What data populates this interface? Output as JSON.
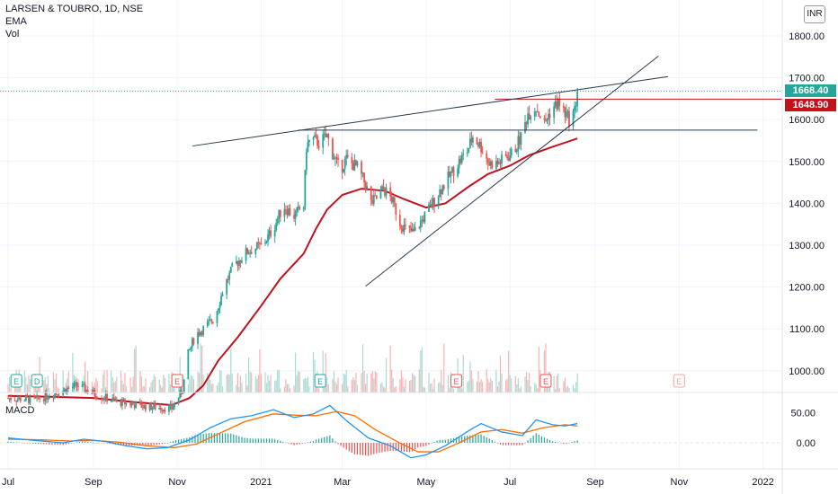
{
  "header": {
    "symbol": "LARSEN & TOUBRO, 1D, NSE",
    "indicator": "EMA",
    "volume": "Vol",
    "currency": "INR"
  },
  "price_axis": {
    "labels": [
      "1800.00",
      "1700.00",
      "1600.00",
      "1500.00",
      "1400.00",
      "1300.00",
      "1200.00",
      "1100.00",
      "1000.00"
    ],
    "current": "1668.40",
    "level": "1648.90"
  },
  "macd_panel": {
    "title": "MACD",
    "labels": [
      "50.00",
      "0.00"
    ]
  },
  "time_axis": {
    "labels": [
      "Jul",
      "Sep",
      "Nov",
      "2021",
      "Mar",
      "May",
      "Jul",
      "Sep",
      "Nov",
      "2022"
    ]
  },
  "colors": {
    "up": "#26a69a",
    "down": "#ef5350",
    "ema": "#c2121c",
    "trendline": "#2a3b4c",
    "current_badge": "#26a69a",
    "level_badge": "#c2121c",
    "macd_line": "#2196f3",
    "signal_line": "#ff6d00"
  },
  "event_markers": [
    "E",
    "D",
    "E",
    "E",
    "E",
    "E",
    "E"
  ],
  "chart_data": {
    "type": "candlestick",
    "title": "LARSEN & TOUBRO, 1D, NSE",
    "y_range": [
      940,
      1840
    ],
    "macd_range": [
      -40,
      70
    ],
    "x_range": [
      "2020-07-01",
      "2022-01-15"
    ],
    "tick_dates": [
      "2020-07-01",
      "2020-09-01",
      "2020-11-01",
      "2021-01-01",
      "2021-03-01",
      "2021-05-01",
      "2021-07-01",
      "2021-09-01",
      "2021-11-01",
      "2022-01-01"
    ],
    "price_ticks": [
      1800,
      1700,
      1600,
      1500,
      1400,
      1300,
      1200,
      1100,
      1000
    ],
    "macd_ticks": [
      50,
      0
    ],
    "last_close": 1668.4,
    "horizontal_levels": [
      1648.9,
      1575
    ],
    "trendlines": [
      {
        "from": [
          "2020-11-12",
          1537
        ],
        "to": [
          "2021-10-24",
          1703
        ]
      },
      {
        "from": [
          "2021-01-28",
          1575
        ],
        "to": [
          "2021-12-28",
          1575
        ]
      },
      {
        "from": [
          "2021-03-18",
          1202
        ],
        "to": [
          "2021-10-17",
          1752
        ]
      }
    ],
    "closes": [
      [
        "2020-07-01",
        935
      ],
      [
        "2020-07-20",
        930
      ],
      [
        "2020-08-08",
        950
      ],
      [
        "2020-08-20",
        965
      ],
      [
        "2020-09-05",
        940
      ],
      [
        "2020-09-20",
        925
      ],
      [
        "2020-10-08",
        915
      ],
      [
        "2020-10-28",
        910
      ],
      [
        "2020-11-05",
        955
      ],
      [
        "2020-11-09",
        1040
      ],
      [
        "2020-11-14",
        1085
      ],
      [
        "2020-11-20",
        1100
      ],
      [
        "2020-11-28",
        1125
      ],
      [
        "2020-12-05",
        1200
      ],
      [
        "2020-12-12",
        1250
      ],
      [
        "2020-12-22",
        1285
      ],
      [
        "2021-01-02",
        1300
      ],
      [
        "2021-01-10",
        1340
      ],
      [
        "2021-01-17",
        1395
      ],
      [
        "2021-01-25",
        1370
      ],
      [
        "2021-02-01",
        1395
      ],
      [
        "2021-02-03",
        1535
      ],
      [
        "2021-02-06",
        1555
      ],
      [
        "2021-02-12",
        1545
      ],
      [
        "2021-02-18",
        1560
      ],
      [
        "2021-02-22",
        1520
      ],
      [
        "2021-02-27",
        1480
      ],
      [
        "2021-03-04",
        1505
      ],
      [
        "2021-03-12",
        1485
      ],
      [
        "2021-03-18",
        1445
      ],
      [
        "2021-03-22",
        1400
      ],
      [
        "2021-03-27",
        1415
      ],
      [
        "2021-03-31",
        1435
      ],
      [
        "2021-04-06",
        1410
      ],
      [
        "2021-04-12",
        1355
      ],
      [
        "2021-04-17",
        1335
      ],
      [
        "2021-04-22",
        1330
      ],
      [
        "2021-04-27",
        1355
      ],
      [
        "2021-05-04",
        1390
      ],
      [
        "2021-05-10",
        1425
      ],
      [
        "2021-05-17",
        1460
      ],
      [
        "2021-05-24",
        1495
      ],
      [
        "2021-05-31",
        1525
      ],
      [
        "2021-06-04",
        1560
      ],
      [
        "2021-06-10",
        1535
      ],
      [
        "2021-06-16",
        1495
      ],
      [
        "2021-06-22",
        1495
      ],
      [
        "2021-06-28",
        1510
      ],
      [
        "2021-07-03",
        1520
      ],
      [
        "2021-07-06",
        1540
      ],
      [
        "2021-07-10",
        1565
      ],
      [
        "2021-07-14",
        1615
      ],
      [
        "2021-07-20",
        1630
      ],
      [
        "2021-07-26",
        1590
      ],
      [
        "2021-07-31",
        1625
      ],
      [
        "2021-08-05",
        1640
      ],
      [
        "2021-08-10",
        1615
      ],
      [
        "2021-08-13",
        1600
      ],
      [
        "2021-08-17",
        1620
      ],
      [
        "2021-08-19",
        1668.4
      ]
    ],
    "ema": [
      [
        "2020-07-01",
        940
      ],
      [
        "2020-08-01",
        938
      ],
      [
        "2020-09-01",
        935
      ],
      [
        "2020-10-01",
        925
      ],
      [
        "2020-10-28",
        918
      ],
      [
        "2020-11-10",
        935
      ],
      [
        "2020-11-20",
        965
      ],
      [
        "2020-12-01",
        1025
      ],
      [
        "2020-12-15",
        1080
      ],
      [
        "2021-01-01",
        1155
      ],
      [
        "2021-01-15",
        1220
      ],
      [
        "2021-02-01",
        1280
      ],
      [
        "2021-02-10",
        1340
      ],
      [
        "2021-02-18",
        1385
      ],
      [
        "2021-03-01",
        1420
      ],
      [
        "2021-03-15",
        1435
      ],
      [
        "2021-04-01",
        1430
      ],
      [
        "2021-04-15",
        1410
      ],
      [
        "2021-05-01",
        1390
      ],
      [
        "2021-05-15",
        1400
      ],
      [
        "2021-06-01",
        1440
      ],
      [
        "2021-06-15",
        1470
      ],
      [
        "2021-07-01",
        1490
      ],
      [
        "2021-07-15",
        1515
      ],
      [
        "2021-08-01",
        1535
      ],
      [
        "2021-08-19",
        1555
      ]
    ],
    "macd": [
      [
        "2020-07-01",
        8
      ],
      [
        "2020-07-20",
        4
      ],
      [
        "2020-08-10",
        0
      ],
      [
        "2020-08-25",
        6
      ],
      [
        "2020-09-10",
        2
      ],
      [
        "2020-09-25",
        -5
      ],
      [
        "2020-10-10",
        -10
      ],
      [
        "2020-10-25",
        -8
      ],
      [
        "2020-11-10",
        5
      ],
      [
        "2020-11-25",
        25
      ],
      [
        "2020-12-10",
        40
      ],
      [
        "2020-12-25",
        45
      ],
      [
        "2021-01-10",
        55
      ],
      [
        "2021-01-25",
        42
      ],
      [
        "2021-02-08",
        48
      ],
      [
        "2021-02-20",
        62
      ],
      [
        "2021-03-05",
        35
      ],
      [
        "2021-03-20",
        8
      ],
      [
        "2021-04-05",
        -5
      ],
      [
        "2021-04-20",
        -25
      ],
      [
        "2021-05-01",
        -20
      ],
      [
        "2021-05-15",
        -5
      ],
      [
        "2021-06-01",
        20
      ],
      [
        "2021-06-10",
        32
      ],
      [
        "2021-06-25",
        18
      ],
      [
        "2021-07-10",
        12
      ],
      [
        "2021-07-20",
        38
      ],
      [
        "2021-08-01",
        30
      ],
      [
        "2021-08-10",
        28
      ],
      [
        "2021-08-19",
        32
      ]
    ],
    "signal": [
      [
        "2020-07-01",
        6
      ],
      [
        "2020-07-25",
        5
      ],
      [
        "2020-08-15",
        3
      ],
      [
        "2020-09-01",
        4
      ],
      [
        "2020-09-20",
        1
      ],
      [
        "2020-10-10",
        -5
      ],
      [
        "2020-10-30",
        -8
      ],
      [
        "2020-11-15",
        -2
      ],
      [
        "2020-12-01",
        15
      ],
      [
        "2020-12-20",
        35
      ],
      [
        "2021-01-10",
        48
      ],
      [
        "2021-01-25",
        46
      ],
      [
        "2021-02-10",
        45
      ],
      [
        "2021-02-25",
        52
      ],
      [
        "2021-03-10",
        45
      ],
      [
        "2021-03-25",
        22
      ],
      [
        "2021-04-10",
        2
      ],
      [
        "2021-04-25",
        -15
      ],
      [
        "2021-05-10",
        -15
      ],
      [
        "2021-05-25",
        0
      ],
      [
        "2021-06-10",
        18
      ],
      [
        "2021-06-25",
        22
      ],
      [
        "2021-07-10",
        16
      ],
      [
        "2021-07-25",
        25
      ],
      [
        "2021-08-10",
        30
      ],
      [
        "2021-08-19",
        28
      ]
    ]
  }
}
